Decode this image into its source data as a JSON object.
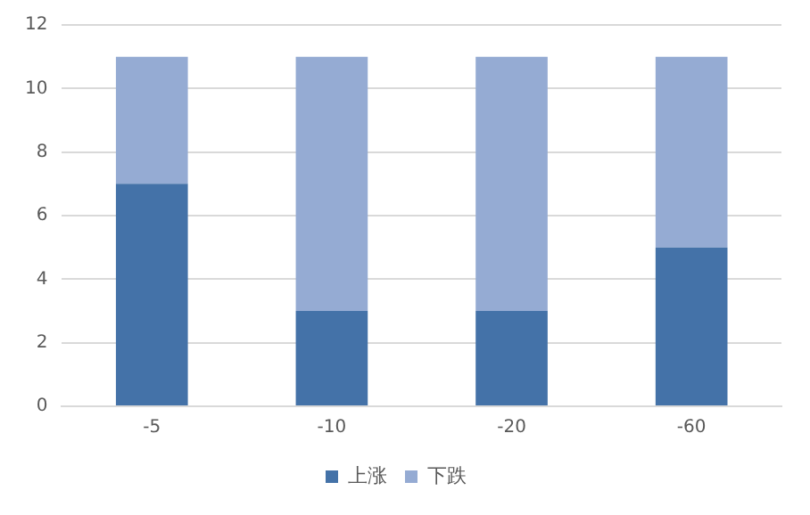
{
  "chart_data": {
    "type": "bar",
    "stacked": true,
    "categories": [
      "-5",
      "-10",
      "-20",
      "-60"
    ],
    "series": [
      {
        "name": "上涨",
        "color": "#4472a8",
        "values": [
          7,
          3,
          3,
          5
        ]
      },
      {
        "name": "下跌",
        "color": "#95abd3",
        "values": [
          4,
          8,
          8,
          6
        ]
      }
    ],
    "ylim": [
      0,
      12
    ],
    "yticks": [
      0,
      2,
      4,
      6,
      8,
      10,
      12
    ],
    "grid": "y",
    "legend": "bottom"
  }
}
